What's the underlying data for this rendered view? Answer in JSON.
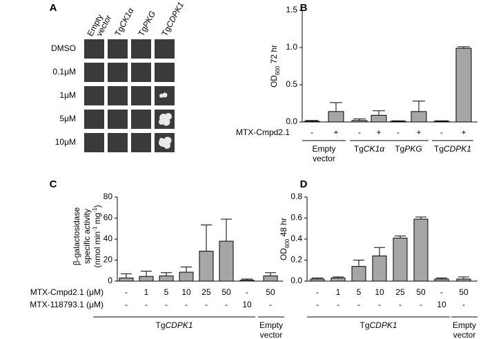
{
  "chart_data": [
    {
      "type": "plate",
      "letter": "A",
      "columns": [
        {
          "lines": [
            "Empty",
            "vector"
          ]
        },
        {
          "prefix": "Tg",
          "italic": "CK1α"
        },
        {
          "prefix": "Tg",
          "italic": "PKG"
        },
        {
          "prefix": "Tg",
          "italic": "CDPK1"
        }
      ],
      "rows": [
        "DMSO",
        "0.1μM",
        "1μM",
        "5μM",
        "10μM"
      ]
    },
    {
      "type": "bar",
      "letter": "B",
      "color": "#a6a6a6",
      "y_label": [
        [
          {
            "text": "OD"
          },
          {
            "text": "600",
            "baseline": "sub"
          },
          {
            "text": " 72 hr"
          }
        ]
      ],
      "ylim": [
        0,
        1.5
      ],
      "yticks": [
        {
          "value": 0,
          "label": "0.0"
        },
        {
          "value": 0.5,
          "label": "0.5"
        },
        {
          "value": 1,
          "label": "1.0"
        },
        {
          "value": 1.5,
          "label": "1.5"
        }
      ],
      "values": [
        0.01,
        0.14,
        0.02,
        0.09,
        0.01,
        0.14,
        0.01,
        0.99
      ],
      "errors": [
        0.01,
        0.12,
        0.02,
        0.06,
        0.005,
        0.14,
        0.005,
        0.02
      ],
      "treatment_rows": [
        {
          "label": "MTX-Cmpd2.1",
          "values": [
            "-",
            "+",
            "-",
            "+",
            "-",
            "+",
            "-",
            "+"
          ]
        }
      ],
      "groups": [
        {
          "lines": [
            "Empty",
            "vector"
          ]
        },
        {
          "prefix": "Tg",
          "italic": "CK1α"
        },
        {
          "prefix": "Tg",
          "italic": "PKG"
        },
        {
          "prefix": "Tg",
          "italic": "CDPK1"
        }
      ]
    },
    {
      "type": "bar",
      "letter": "C",
      "color": "#a6a6a6",
      "y_label": [
        [
          {
            "text": "β-galactosidase"
          }
        ],
        [
          {
            "text": "specific activity"
          }
        ],
        [
          {
            "text": "(nmol min"
          },
          {
            "text": "-1",
            "baseline": "super"
          },
          {
            "text": " mg"
          },
          {
            "text": "-1",
            "baseline": "super"
          },
          {
            "text": ")"
          }
        ]
      ],
      "ylim": [
        0,
        80
      ],
      "yticks": [
        0,
        20,
        40,
        60,
        80
      ],
      "values": [
        3,
        4.5,
        5,
        8.5,
        28.5,
        38,
        1,
        5
      ],
      "errors": [
        4,
        5,
        3,
        5,
        25,
        21,
        1,
        3
      ],
      "treatment_rows": [
        {
          "label": "MTX-Cmpd2.1 (μM)",
          "values": [
            "-",
            "1",
            "5",
            "10",
            "25",
            "50",
            "-",
            "50"
          ]
        },
        {
          "label": "MTX-118793.1 (μM)",
          "values": [
            "-",
            "-",
            "-",
            "-",
            "-",
            "-",
            "10",
            "-"
          ]
        }
      ],
      "groups": [
        {
          "prefix": "Tg",
          "italic": "CDPK1"
        },
        {
          "lines": [
            "Empty",
            "vector"
          ]
        }
      ]
    },
    {
      "type": "bar",
      "letter": "D",
      "color": "#a6a6a6",
      "y_label": [
        [
          {
            "text": "OD"
          },
          {
            "text": "600",
            "baseline": "sub"
          },
          {
            "text": " 48 hr"
          }
        ]
      ],
      "ylim": [
        0,
        0.8
      ],
      "yticks": [
        {
          "value": 0,
          "label": "0.0"
        },
        0.2,
        0.4,
        0.6,
        0.8
      ],
      "values": [
        0.02,
        0.03,
        0.14,
        0.24,
        0.41,
        0.59,
        0.02,
        0.02
      ],
      "errors": [
        0.01,
        0.01,
        0.06,
        0.08,
        0.02,
        0.02,
        0.01,
        0.02
      ],
      "treatment_rows": [
        {
          "values": [
            "-",
            "1",
            "5",
            "10",
            "25",
            "50",
            "-",
            "50"
          ]
        },
        {
          "values": [
            "-",
            "-",
            "-",
            "-",
            "-",
            "-",
            "10",
            "-"
          ]
        }
      ],
      "groups": [
        {
          "prefix": "Tg",
          "italic": "CDPK1"
        },
        {
          "lines": [
            "Empty",
            "vector"
          ]
        }
      ]
    }
  ]
}
